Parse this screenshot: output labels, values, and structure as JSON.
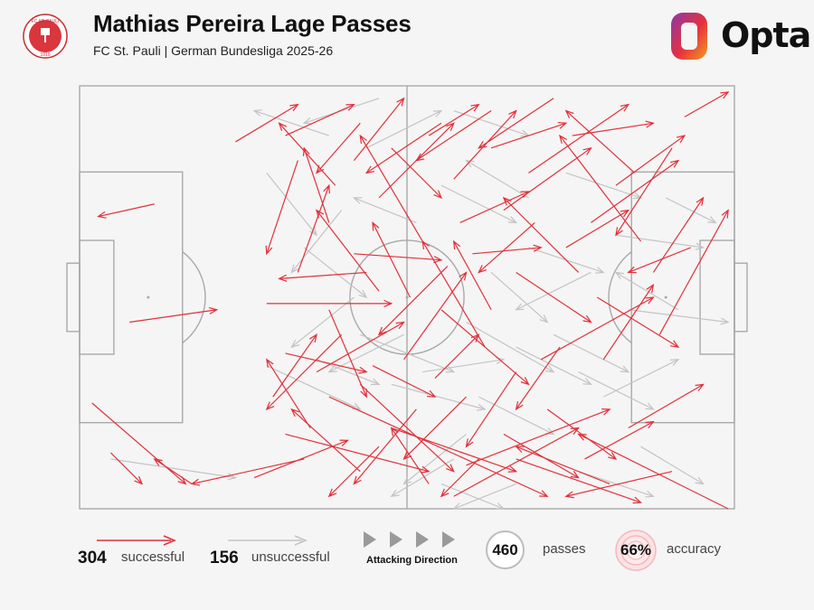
{
  "header": {
    "title": "Mathias Pereira Lage Passes",
    "subtitle": "FC St. Pauli | German Bundesliga 2025-26",
    "badge_text": "FC ST. PAULI",
    "badge_year": "1910",
    "brand": "Opta"
  },
  "colors": {
    "successful": "#e2303a",
    "unsuccessful": "#c4c4c4",
    "pitch_line": "#a9a9a9",
    "background": "#f5f5f5",
    "opta_gradient": [
      "#8a3aa8",
      "#e6313f",
      "#f39b1f"
    ]
  },
  "legend": {
    "successful_count": "304",
    "successful_label": "successful",
    "unsuccessful_count": "156",
    "unsuccessful_label": "unsuccessful",
    "attacking_direction_label": "Attacking Direction",
    "passes_count": "460",
    "passes_label": "passes",
    "accuracy_value": "66%",
    "accuracy_label": "accuracy"
  },
  "chart_data": {
    "type": "pass-map",
    "pitch": {
      "length": 105,
      "width": 68,
      "attacking_direction": "left-to-right"
    },
    "totals": {
      "passes": 460,
      "successful": 304,
      "unsuccessful": 156,
      "accuracy_pct": 66
    },
    "generation_note_hidden": false,
    "successful_passes": [
      [
        5,
        59,
        10,
        64
      ],
      [
        18,
        64,
        12,
        60
      ],
      [
        2,
        51,
        17,
        64
      ],
      [
        8,
        38,
        22,
        36
      ],
      [
        12,
        19,
        3,
        21
      ],
      [
        35,
        12,
        30,
        27
      ],
      [
        25,
        9,
        35,
        3
      ],
      [
        36,
        60,
        18,
        64
      ],
      [
        28,
        63,
        43,
        57
      ],
      [
        33,
        56,
        56,
        62
      ],
      [
        40,
        50,
        75,
        66
      ],
      [
        45,
        48,
        60,
        62
      ],
      [
        50,
        55,
        70,
        62
      ],
      [
        60,
        66,
        80,
        55
      ],
      [
        70,
        60,
        90,
        67
      ],
      [
        104,
        68,
        80,
        56
      ],
      [
        95,
        62,
        78,
        66
      ],
      [
        85,
        64,
        70,
        58
      ],
      [
        62,
        61,
        85,
        52
      ],
      [
        38,
        46,
        52,
        38
      ],
      [
        42,
        40,
        30,
        52
      ],
      [
        30,
        35,
        50,
        35
      ],
      [
        48,
        33,
        38,
        20
      ],
      [
        46,
        30,
        32,
        31
      ],
      [
        52,
        44,
        62,
        30
      ],
      [
        58,
        36,
        72,
        48
      ],
      [
        65,
        42,
        55,
        25
      ],
      [
        74,
        44,
        92,
        34
      ],
      [
        80,
        30,
        68,
        18
      ],
      [
        82,
        22,
        96,
        12
      ],
      [
        90,
        25,
        77,
        8
      ],
      [
        68,
        20,
        82,
        10
      ],
      [
        60,
        15,
        70,
        4
      ],
      [
        55,
        25,
        45,
        8
      ],
      [
        48,
        18,
        60,
        6
      ],
      [
        40,
        22,
        36,
        10
      ],
      [
        44,
        12,
        52,
        2
      ],
      [
        56,
        8,
        64,
        3
      ],
      [
        66,
        10,
        78,
        6
      ],
      [
        72,
        14,
        88,
        3
      ],
      [
        86,
        16,
        97,
        8
      ],
      [
        92,
        30,
        100,
        18
      ],
      [
        97,
        5,
        104,
        1
      ],
      [
        76,
        2,
        64,
        10
      ],
      [
        66,
        4,
        54,
        12
      ],
      [
        58,
        6,
        46,
        14
      ],
      [
        70,
        30,
        82,
        38
      ],
      [
        75,
        52,
        86,
        60
      ],
      [
        88,
        55,
        100,
        48
      ],
      [
        93,
        40,
        104,
        20
      ],
      [
        84,
        44,
        92,
        32
      ],
      [
        62,
        50,
        52,
        60
      ],
      [
        54,
        52,
        44,
        64
      ],
      [
        45,
        62,
        34,
        52
      ],
      [
        37,
        55,
        30,
        44
      ],
      [
        31,
        50,
        38,
        40
      ],
      [
        33,
        43,
        46,
        46
      ],
      [
        40,
        36,
        46,
        50
      ],
      [
        47,
        45,
        57,
        50
      ],
      [
        57,
        47,
        64,
        40
      ],
      [
        66,
        36,
        60,
        25
      ],
      [
        61,
        22,
        72,
        17
      ],
      [
        73,
        22,
        64,
        30
      ],
      [
        53,
        34,
        47,
        22
      ],
      [
        44,
        27,
        58,
        28
      ],
      [
        59,
        29,
        48,
        40
      ],
      [
        35,
        30,
        40,
        16
      ],
      [
        41,
        16,
        32,
        6
      ],
      [
        33,
        8,
        44,
        3
      ],
      [
        45,
        6,
        38,
        14
      ],
      [
        50,
        10,
        58,
        18
      ],
      [
        63,
        27,
        74,
        26
      ],
      [
        78,
        26,
        88,
        20
      ],
      [
        89,
        14,
        78,
        4
      ],
      [
        79,
        8,
        92,
        6
      ],
      [
        95,
        10,
        86,
        24
      ],
      [
        98,
        26,
        88,
        30
      ],
      [
        83,
        34,
        96,
        42
      ],
      [
        77,
        42,
        70,
        52
      ],
      [
        68,
        56,
        80,
        63
      ],
      [
        81,
        60,
        92,
        54
      ],
      [
        70,
        46,
        62,
        58
      ],
      [
        64,
        60,
        58,
        66
      ],
      [
        56,
        64,
        50,
        55
      ],
      [
        48,
        58,
        40,
        66
      ]
    ],
    "unsuccessful_passes": [
      [
        5,
        60,
        25,
        63
      ],
      [
        30,
        45,
        45,
        52
      ],
      [
        45,
        40,
        60,
        46
      ],
      [
        50,
        48,
        65,
        52
      ],
      [
        62,
        38,
        76,
        46
      ],
      [
        76,
        40,
        88,
        46
      ],
      [
        88,
        36,
        104,
        38
      ],
      [
        80,
        46,
        92,
        52
      ],
      [
        90,
        58,
        100,
        64
      ],
      [
        70,
        64,
        60,
        68
      ],
      [
        60,
        60,
        50,
        66
      ],
      [
        64,
        50,
        76,
        56
      ],
      [
        66,
        30,
        75,
        38
      ],
      [
        72,
        26,
        84,
        30
      ],
      [
        86,
        24,
        100,
        26
      ],
      [
        94,
        18,
        102,
        22
      ],
      [
        78,
        14,
        90,
        18
      ],
      [
        60,
        4,
        72,
        8
      ],
      [
        48,
        2,
        36,
        6
      ],
      [
        40,
        8,
        28,
        4
      ],
      [
        30,
        14,
        38,
        24
      ],
      [
        36,
        26,
        46,
        34
      ],
      [
        44,
        34,
        34,
        42
      ],
      [
        38,
        44,
        48,
        48
      ],
      [
        52,
        40,
        40,
        46
      ],
      [
        55,
        46,
        68,
        44
      ],
      [
        70,
        42,
        82,
        48
      ],
      [
        84,
        50,
        96,
        44
      ],
      [
        96,
        36,
        86,
        30
      ],
      [
        82,
        30,
        70,
        36
      ],
      [
        62,
        56,
        52,
        64
      ],
      [
        58,
        64,
        68,
        68
      ],
      [
        80,
        62,
        92,
        66
      ],
      [
        46,
        10,
        58,
        4
      ],
      [
        58,
        16,
        70,
        22
      ],
      [
        72,
        18,
        62,
        12
      ],
      [
        54,
        22,
        44,
        18
      ],
      [
        42,
        20,
        34,
        30
      ]
    ]
  }
}
